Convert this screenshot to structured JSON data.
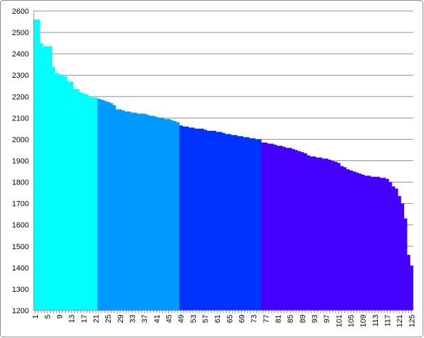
{
  "chart_data": {
    "type": "bar",
    "categories": [
      "1",
      null,
      null,
      null,
      "5",
      null,
      null,
      null,
      "9",
      null,
      null,
      null,
      "13",
      null,
      null,
      null,
      "17",
      null,
      null,
      null,
      "21",
      null,
      null,
      null,
      "25",
      null,
      null,
      null,
      "29",
      null,
      null,
      null,
      "33",
      null,
      null,
      null,
      "37",
      null,
      null,
      null,
      "41",
      null,
      null,
      null,
      "45",
      null,
      null,
      null,
      "49",
      null,
      null,
      null,
      "53",
      null,
      null,
      null,
      "57",
      null,
      null,
      null,
      "61",
      null,
      null,
      null,
      "65",
      null,
      null,
      null,
      "69",
      null,
      null,
      null,
      "73",
      null,
      null,
      null,
      "77",
      null,
      null,
      null,
      "81",
      null,
      null,
      null,
      "85",
      null,
      null,
      null,
      "89",
      null,
      null,
      null,
      "93",
      null,
      null,
      null,
      "97",
      null,
      null,
      null,
      "101",
      null,
      null,
      null,
      "105",
      null,
      null,
      null,
      "109",
      null,
      null,
      null,
      "113",
      null,
      null,
      null,
      "117",
      null,
      null,
      null,
      "121",
      null,
      null,
      null,
      "125"
    ],
    "values": [
      2560,
      2560,
      2450,
      2435,
      2435,
      2435,
      2340,
      2310,
      2305,
      2300,
      2295,
      2270,
      2270,
      2235,
      2235,
      2220,
      2215,
      2210,
      2200,
      2195,
      2195,
      2190,
      2185,
      2180,
      2175,
      2170,
      2160,
      2140,
      2140,
      2135,
      2130,
      2130,
      2125,
      2125,
      2120,
      2120,
      2120,
      2115,
      2110,
      2110,
      2105,
      2100,
      2100,
      2095,
      2095,
      2090,
      2085,
      2080,
      2065,
      2060,
      2060,
      2055,
      2055,
      2050,
      2050,
      2050,
      2045,
      2040,
      2040,
      2040,
      2035,
      2035,
      2030,
      2025,
      2025,
      2020,
      2020,
      2015,
      2015,
      2010,
      2010,
      2005,
      2005,
      2000,
      2000,
      1985,
      1985,
      1980,
      1980,
      1975,
      1970,
      1970,
      1965,
      1960,
      1960,
      1955,
      1950,
      1945,
      1940,
      1935,
      1925,
      1920,
      1920,
      1915,
      1915,
      1910,
      1910,
      1905,
      1900,
      1895,
      1890,
      1875,
      1870,
      1860,
      1855,
      1850,
      1845,
      1840,
      1835,
      1830,
      1830,
      1825,
      1825,
      1825,
      1820,
      1820,
      1815,
      1800,
      1780,
      1770,
      1735,
      1700,
      1630,
      1460,
      1410
    ],
    "bar_colors": [
      "#00ffff",
      "#00ffff",
      "#00ffff",
      "#00ffff",
      "#00ffff",
      "#00ffff",
      "#00ffff",
      "#00ffff",
      "#00ffff",
      "#00ffff",
      "#00ffff",
      "#00ffff",
      "#00ffff",
      "#00ffff",
      "#00ffff",
      "#00ffff",
      "#00ffff",
      "#00ffff",
      "#00ffff",
      "#00ffff",
      "#00ffff",
      "#0099ff",
      "#0099ff",
      "#0099ff",
      "#0099ff",
      "#0099ff",
      "#0099ff",
      "#0099ff",
      "#0099ff",
      "#0099ff",
      "#0099ff",
      "#0099ff",
      "#0099ff",
      "#0099ff",
      "#0099ff",
      "#0099ff",
      "#0099ff",
      "#0099ff",
      "#0099ff",
      "#0099ff",
      "#0099ff",
      "#0099ff",
      "#0099ff",
      "#0099ff",
      "#0099ff",
      "#0099ff",
      "#0099ff",
      "#0099ff",
      "#0033ff",
      "#0033ff",
      "#0033ff",
      "#0033ff",
      "#0033ff",
      "#0033ff",
      "#0033ff",
      "#0033ff",
      "#0033ff",
      "#0033ff",
      "#0033ff",
      "#0033ff",
      "#0033ff",
      "#0033ff",
      "#0033ff",
      "#0033ff",
      "#0033ff",
      "#0033ff",
      "#0033ff",
      "#0033ff",
      "#0033ff",
      "#0033ff",
      "#0033ff",
      "#0033ff",
      "#0033ff",
      "#0033ff",
      "#0033ff",
      "#4400ff",
      "#4400ff",
      "#4400ff",
      "#4400ff",
      "#4400ff",
      "#4400ff",
      "#4400ff",
      "#4400ff",
      "#4400ff",
      "#4400ff",
      "#4400ff",
      "#4400ff",
      "#4400ff",
      "#4400ff",
      "#4400ff",
      "#4400ff",
      "#4400ff",
      "#4400ff",
      "#4400ff",
      "#4400ff",
      "#4400ff",
      "#4400ff",
      "#4400ff",
      "#4400ff",
      "#4400ff",
      "#4400ff",
      "#4400ff",
      "#4400ff",
      "#4400ff",
      "#4400ff",
      "#4400ff",
      "#4400ff",
      "#4400ff",
      "#4400ff",
      "#4400ff",
      "#4400ff",
      "#4400ff",
      "#4400ff",
      "#4400ff",
      "#4400ff",
      "#4400ff",
      "#4400ff",
      "#4400ff",
      "#4400ff",
      "#4400ff",
      "#4400ff",
      "#4400ff",
      "#4400ff",
      "#4400ff",
      "#4400ff"
    ],
    "ylim": [
      1200,
      2600
    ],
    "yticks": [
      1200,
      1300,
      1400,
      1500,
      1600,
      1700,
      1800,
      1900,
      2000,
      2100,
      2200,
      2300,
      2400,
      2500,
      2600
    ],
    "grid": true
  }
}
